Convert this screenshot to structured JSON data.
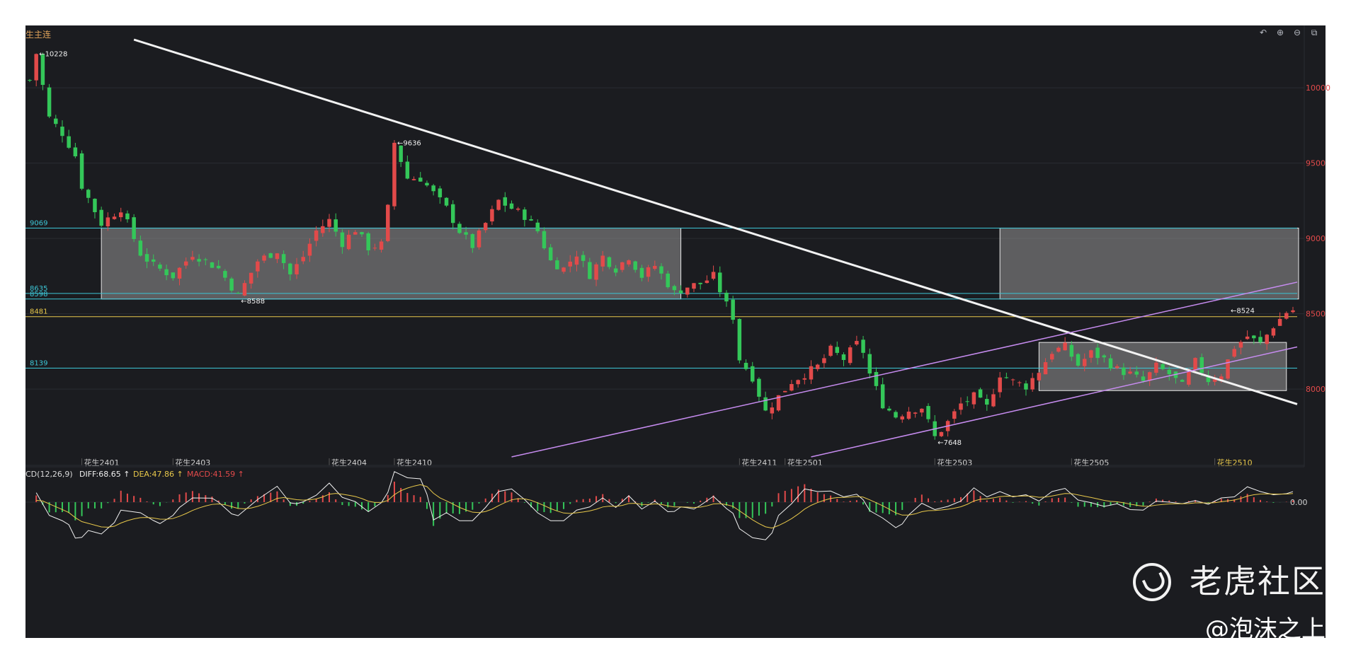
{
  "title": "生主连",
  "toolbar": {
    "icons": [
      "undo-icon",
      "zoom-in-icon",
      "zoom-out-icon",
      "settings-icon"
    ],
    "glyphs": [
      "↶",
      "⊕",
      "⊖",
      "⧉"
    ]
  },
  "colors": {
    "background": "#1b1c20",
    "up": "#e24a4a",
    "down": "#34c759",
    "trendline": "#f2f2f2",
    "channel": "#c78cf0",
    "support": "#3cc6d6",
    "level_8481": "#e8c84a",
    "macd_up": "#e24a4a",
    "macd_down": "#34c759"
  },
  "chart_data": [
    {
      "type": "candlestick",
      "y_tick_labels": [
        "10000",
        "9500",
        "9000",
        "8500",
        "8000"
      ],
      "y_ticks": [
        10000,
        9500,
        9000,
        8500,
        8000
      ],
      "ylim": [
        7550,
        10320
      ],
      "x_labels": [
        {
          "text": "花生2401",
          "i": 8
        },
        {
          "text": "花生2403",
          "i": 22
        },
        {
          "text": "花生2404",
          "i": 46
        },
        {
          "text": "花生2410",
          "i": 56
        },
        {
          "text": "花生2411",
          "i": 109
        },
        {
          "text": "花生2501",
          "i": 116
        },
        {
          "text": "花生2503",
          "i": 139
        },
        {
          "text": "花生2505",
          "i": 160
        },
        {
          "text": "花生2510",
          "i": 182,
          "highlight": true
        }
      ],
      "x_count": 195,
      "price_annotations": [
        {
          "text": "←10228",
          "i": 1,
          "price": 10228
        },
        {
          "text": "←9636",
          "i": 56,
          "price": 9636
        },
        {
          "text": "←8588",
          "i": 32,
          "price": 8588
        },
        {
          "text": "←7648",
          "i": 139,
          "price": 7648
        },
        {
          "text": "←8524",
          "i": 184,
          "price": 8524
        }
      ],
      "horizontal_lines": [
        {
          "label": "9069",
          "value": 9069,
          "color": "#3cc6d6"
        },
        {
          "label": "8635",
          "value": 8635,
          "color": "#3cc6d6"
        },
        {
          "label": "8598",
          "value": 8598,
          "color": "#3cc6d6"
        },
        {
          "label": "8481",
          "value": 8481,
          "color": "#e8c84a"
        },
        {
          "label": "8139",
          "value": 8139,
          "color": "#3cc6d6"
        }
      ],
      "boxes": [
        {
          "i0": 11,
          "i1": 100,
          "top": 9069,
          "bottom": 8598
        },
        {
          "i0": 149,
          "i1": 200,
          "top": 9069,
          "bottom": 8598
        },
        {
          "i0": 155,
          "i1": 193,
          "top": 8310,
          "bottom": 7990
        }
      ],
      "trendlines": [
        {
          "i0": 16,
          "p0": 10320,
          "i1": 200,
          "p1": 7900,
          "color": "#f2f2f2"
        },
        {
          "i0": 74,
          "p0": 7550,
          "i1": 200,
          "p1": 8710,
          "color": "#c78cf0"
        },
        {
          "i0": 120,
          "p0": 7550,
          "i1": 200,
          "p1": 8280,
          "color": "#c78cf0"
        }
      ],
      "anchors": [
        [
          0,
          10050
        ],
        [
          1,
          10228
        ],
        [
          3,
          9800
        ],
        [
          5,
          9700
        ],
        [
          7,
          9550
        ],
        [
          8,
          9350
        ],
        [
          11,
          9100
        ],
        [
          14,
          9200
        ],
        [
          17,
          8900
        ],
        [
          19,
          8820
        ],
        [
          22,
          8750
        ],
        [
          25,
          8900
        ],
        [
          29,
          8800
        ],
        [
          32,
          8620
        ],
        [
          35,
          8850
        ],
        [
          38,
          8920
        ],
        [
          40,
          8760
        ],
        [
          42,
          8880
        ],
        [
          44,
          9050
        ],
        [
          46,
          9120
        ],
        [
          48,
          8970
        ],
        [
          50,
          9060
        ],
        [
          52,
          8940
        ],
        [
          54,
          8960
        ],
        [
          55,
          9200
        ],
        [
          56,
          9636
        ],
        [
          58,
          9400
        ],
        [
          60,
          9400
        ],
        [
          62,
          9300
        ],
        [
          64,
          9200
        ],
        [
          66,
          9050
        ],
        [
          68,
          8950
        ],
        [
          70,
          9100
        ],
        [
          72,
          9250
        ],
        [
          74,
          9200
        ],
        [
          76,
          9150
        ],
        [
          78,
          9050
        ],
        [
          80,
          8850
        ],
        [
          82,
          8800
        ],
        [
          84,
          8900
        ],
        [
          86,
          8760
        ],
        [
          88,
          8880
        ],
        [
          90,
          8800
        ],
        [
          92,
          8880
        ],
        [
          94,
          8750
        ],
        [
          96,
          8820
        ],
        [
          98,
          8700
        ],
        [
          99,
          8640
        ],
        [
          101,
          8680
        ],
        [
          103,
          8700
        ],
        [
          105,
          8750
        ],
        [
          107,
          8560
        ],
        [
          108,
          8480
        ],
        [
          109,
          8200
        ],
        [
          111,
          8080
        ],
        [
          113,
          7850
        ],
        [
          115,
          7950
        ],
        [
          117,
          8050
        ],
        [
          119,
          8100
        ],
        [
          121,
          8150
        ],
        [
          123,
          8260
        ],
        [
          125,
          8200
        ],
        [
          127,
          8300
        ],
        [
          128,
          8250
        ],
        [
          129,
          8100
        ],
        [
          131,
          7900
        ],
        [
          133,
          7820
        ],
        [
          135,
          7860
        ],
        [
          137,
          7880
        ],
        [
          139,
          7680
        ],
        [
          141,
          7780
        ],
        [
          143,
          7900
        ],
        [
          145,
          7950
        ],
        [
          147,
          7880
        ],
        [
          149,
          8100
        ],
        [
          151,
          8050
        ],
        [
          153,
          8020
        ],
        [
          155,
          8120
        ],
        [
          157,
          8250
        ],
        [
          159,
          8280
        ],
        [
          161,
          8160
        ],
        [
          163,
          8240
        ],
        [
          165,
          8200
        ],
        [
          167,
          8130
        ],
        [
          169,
          8100
        ],
        [
          171,
          8050
        ],
        [
          173,
          8150
        ],
        [
          175,
          8100
        ],
        [
          177,
          8020
        ],
        [
          179,
          8180
        ],
        [
          181,
          8060
        ],
        [
          183,
          8100
        ],
        [
          185,
          8280
        ],
        [
          187,
          8350
        ],
        [
          189,
          8300
        ],
        [
          191,
          8420
        ],
        [
          193,
          8510
        ],
        [
          194,
          8524
        ]
      ]
    },
    {
      "type": "macd",
      "label": "CD(12,26,9)",
      "diff_label": "DIFF:68.65",
      "dea_label": "DEA:47.86",
      "macd_label": "MACD:41.59",
      "tick_labels": [
        "0.00"
      ],
      "tick_value": 0
    }
  ],
  "watermark": {
    "brand": "老虎社区",
    "handle": "@泡沫之上"
  }
}
